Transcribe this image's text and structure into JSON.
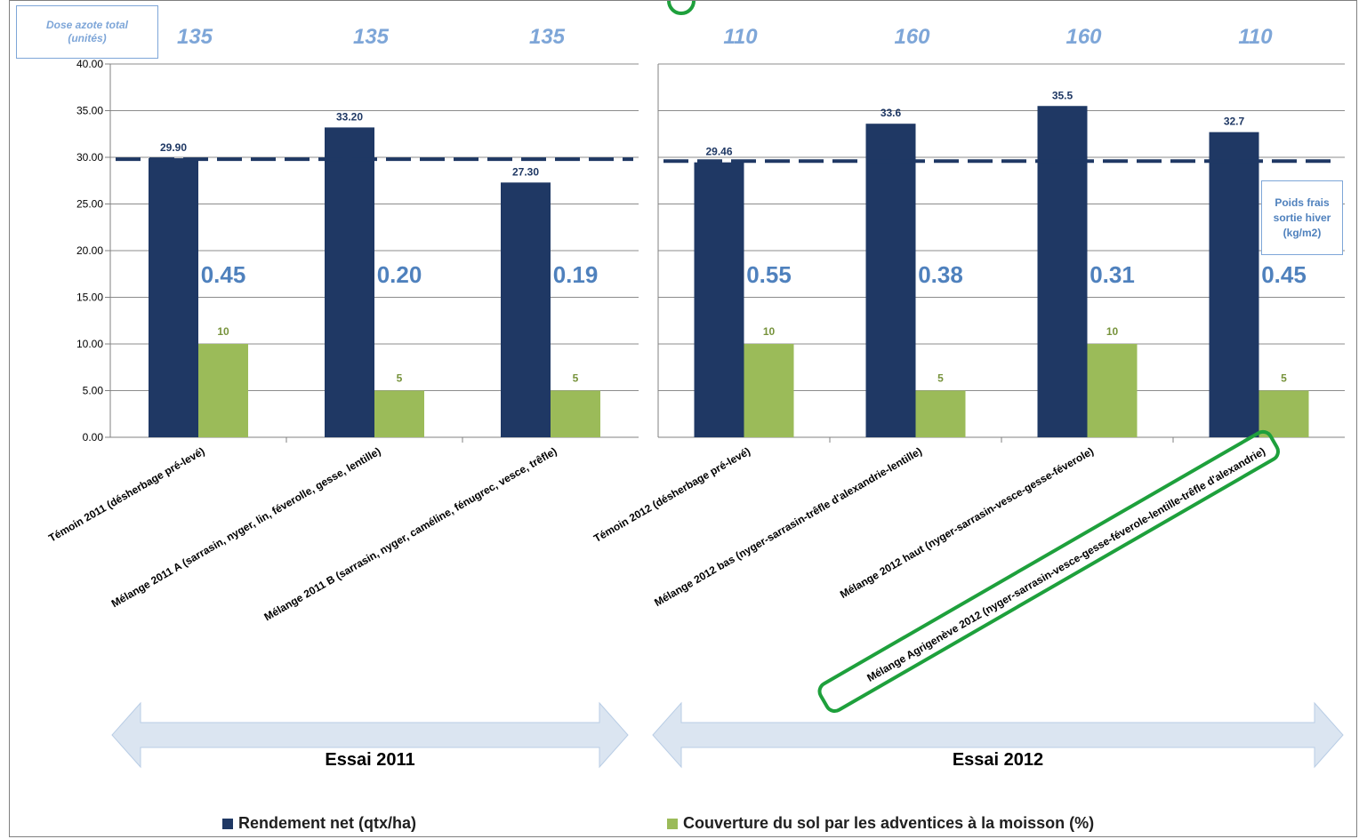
{
  "chart_data": {
    "type": "bar",
    "yaxis": {
      "ticks": [
        "0.00",
        "5.00",
        "10.00",
        "15.00",
        "20.00",
        "25.00",
        "30.00",
        "35.00",
        "40.00"
      ],
      "ylim": [
        0,
        40
      ],
      "grid": true
    },
    "dose_label": [
      "Dose azote total",
      "(unités)"
    ],
    "poids_label": [
      "Poids frais",
      "sortie hiver",
      "(kg/m2)"
    ],
    "colors": {
      "rendement": "#1f3864",
      "couverture": "#9bbb59",
      "dose": "#7ea6d8",
      "poids": "#4f81bd",
      "highlight": "#1ea03c",
      "arrow": "#dbe5f1"
    },
    "panels": [
      {
        "essai": "Essai 2011",
        "avg_line": 29.8,
        "groups": [
          {
            "category": "Témoin 2011 (désherbage pré-levé)",
            "rendement": 29.9,
            "rendement_label": "29.90",
            "couverture": 10,
            "couverture_label": "10",
            "dose": "135",
            "poids": "0.45"
          },
          {
            "category": "Mélange 2011 A (sarrasin, nyger, lin, féverolle, gesse, lentille)",
            "rendement": 33.2,
            "rendement_label": "33.20",
            "couverture": 5,
            "couverture_label": "5",
            "dose": "135",
            "poids": "0.20"
          },
          {
            "category": "Mélange 2011 B (sarrasin, nyger, caméline, fénugrec, vesce, trêfle)",
            "rendement": 27.3,
            "rendement_label": "27.30",
            "couverture": 5,
            "couverture_label": "5",
            "dose": "135",
            "poids": "0.19"
          }
        ]
      },
      {
        "essai": "Essai 2012",
        "avg_line": 29.6,
        "groups": [
          {
            "category": "Témoin 2012 (désherbage pré-levé)",
            "rendement": 29.46,
            "rendement_label": "29.46",
            "couverture": 10,
            "couverture_label": "10",
            "dose": "110",
            "poids": "0.55"
          },
          {
            "category": "Mélange 2012 bas (nyger-sarrasin-trêfle d'alexandrie-lentille)",
            "rendement": 33.6,
            "rendement_label": "33.6",
            "couverture": 5,
            "couverture_label": "5",
            "dose": "160",
            "poids": "0.38"
          },
          {
            "category": "Mélange 2012 haut (nyger-sarrasin-vesce-gesse-féverole)",
            "rendement": 35.5,
            "rendement_label": "35.5",
            "couverture": 10,
            "couverture_label": "10",
            "dose": "160",
            "poids": "0.31"
          },
          {
            "category": "Mélange Agrigenève 2012 (nyger-sarrasin-vesce-gesse-féverole-lentille-trêfle d'alexandrie)",
            "rendement": 32.7,
            "rendement_label": "32.7",
            "couverture": 5,
            "couverture_label": "5",
            "dose": "110",
            "poids": "0.45",
            "highlighted": true
          }
        ]
      }
    ],
    "series": [
      {
        "name": "Rendement net (qtx/ha)",
        "key": "rendement"
      },
      {
        "name": "Couverture du sol par les adventices à la moisson (%)",
        "key": "couverture"
      }
    ]
  }
}
